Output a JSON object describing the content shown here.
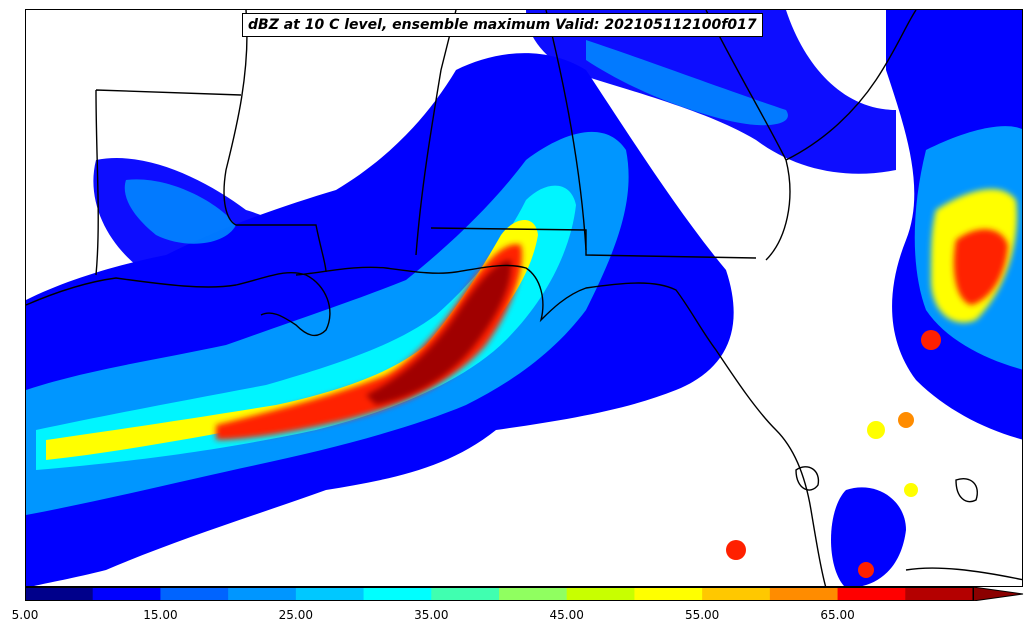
{
  "title": "dBZ at 10 C level, ensemble maximum Valid: 202105112100f017",
  "colorbar": {
    "levels": [
      5,
      10,
      15,
      20,
      25,
      30,
      35,
      40,
      45,
      50,
      55,
      60,
      65,
      70
    ],
    "colors": [
      "#00008b",
      "#0000ff",
      "#0064ff",
      "#0096ff",
      "#00c8ff",
      "#00ffff",
      "#40ffb0",
      "#90ff60",
      "#c8ff00",
      "#ffff00",
      "#ffc800",
      "#ff8c00",
      "#ff0000",
      "#b40000"
    ],
    "extend_color": "#8b0000",
    "tick_labels": [
      "5.00",
      "15.00",
      "25.00",
      "35.00",
      "45.00",
      "55.00",
      "65.00"
    ]
  }
}
